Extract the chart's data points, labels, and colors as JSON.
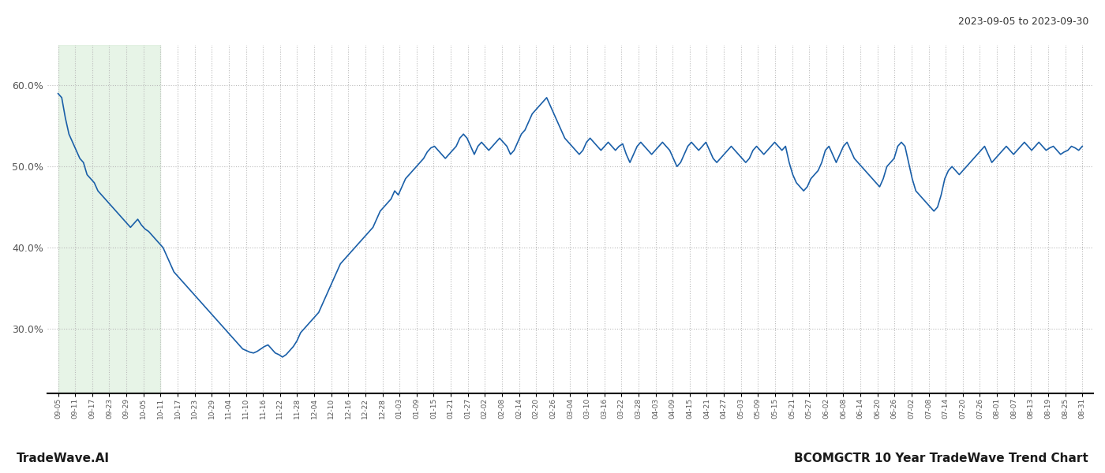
{
  "title_right": "2023-09-05 to 2023-09-30",
  "footer_left": "TradeWave.AI",
  "footer_right": "BCOMGCTR 10 Year TradeWave Trend Chart",
  "line_color": "#1a5fa8",
  "line_width": 1.2,
  "shading_color": "#d8edd8",
  "shading_alpha": 0.6,
  "background_color": "#ffffff",
  "grid_color": "#bbbbbb",
  "ylim": [
    22,
    65
  ],
  "yticks": [
    30.0,
    40.0,
    50.0,
    60.0
  ],
  "x_labels": [
    "09-05",
    "09-11",
    "09-17",
    "09-23",
    "09-29",
    "10-05",
    "10-11",
    "10-17",
    "10-23",
    "10-29",
    "11-04",
    "11-10",
    "11-16",
    "11-22",
    "11-28",
    "12-04",
    "12-10",
    "12-16",
    "12-22",
    "12-28",
    "01-03",
    "01-09",
    "01-15",
    "01-21",
    "01-27",
    "02-02",
    "02-08",
    "02-14",
    "02-20",
    "02-26",
    "03-04",
    "03-10",
    "03-16",
    "03-22",
    "03-28",
    "04-03",
    "04-09",
    "04-15",
    "04-21",
    "04-27",
    "05-03",
    "05-09",
    "05-15",
    "05-21",
    "05-27",
    "06-02",
    "06-08",
    "06-14",
    "06-20",
    "06-26",
    "07-02",
    "07-08",
    "07-14",
    "07-20",
    "07-26",
    "08-01",
    "08-07",
    "08-13",
    "08-19",
    "08-25",
    "08-31"
  ],
  "shade_start_label": "09-05",
  "shade_end_label": "10-17",
  "values": [
    59.0,
    58.5,
    56.0,
    54.0,
    53.0,
    52.0,
    51.0,
    50.5,
    49.0,
    48.5,
    48.0,
    47.0,
    46.5,
    46.0,
    45.5,
    45.0,
    44.5,
    44.0,
    43.5,
    43.0,
    42.5,
    43.0,
    43.5,
    42.8,
    42.3,
    42.0,
    41.5,
    41.0,
    40.5,
    40.0,
    39.0,
    38.0,
    37.0,
    36.5,
    36.0,
    35.5,
    35.0,
    34.5,
    34.0,
    33.5,
    33.0,
    32.5,
    32.0,
    31.5,
    31.0,
    30.5,
    30.0,
    29.5,
    29.0,
    28.5,
    28.0,
    27.5,
    27.3,
    27.1,
    27.0,
    27.2,
    27.5,
    27.8,
    28.0,
    27.5,
    27.0,
    26.8,
    26.5,
    26.8,
    27.3,
    27.8,
    28.5,
    29.5,
    30.0,
    30.5,
    31.0,
    31.5,
    32.0,
    33.0,
    34.0,
    35.0,
    36.0,
    37.0,
    38.0,
    38.5,
    39.0,
    39.5,
    40.0,
    40.5,
    41.0,
    41.5,
    42.0,
    42.5,
    43.5,
    44.5,
    45.0,
    45.5,
    46.0,
    47.0,
    46.5,
    47.5,
    48.5,
    49.0,
    49.5,
    50.0,
    50.5,
    51.0,
    51.8,
    52.3,
    52.5,
    52.0,
    51.5,
    51.0,
    51.5,
    52.0,
    52.5,
    53.5,
    54.0,
    53.5,
    52.5,
    51.5,
    52.5,
    53.0,
    52.5,
    52.0,
    52.5,
    53.0,
    53.5,
    53.0,
    52.5,
    51.5,
    52.0,
    53.0,
    54.0,
    54.5,
    55.5,
    56.5,
    57.0,
    57.5,
    58.0,
    58.5,
    57.5,
    56.5,
    55.5,
    54.5,
    53.5,
    53.0,
    52.5,
    52.0,
    51.5,
    52.0,
    53.0,
    53.5,
    53.0,
    52.5,
    52.0,
    52.5,
    53.0,
    52.5,
    52.0,
    52.5,
    52.8,
    51.5,
    50.5,
    51.5,
    52.5,
    53.0,
    52.5,
    52.0,
    51.5,
    52.0,
    52.5,
    53.0,
    52.5,
    52.0,
    51.0,
    50.0,
    50.5,
    51.5,
    52.5,
    53.0,
    52.5,
    52.0,
    52.5,
    53.0,
    52.0,
    51.0,
    50.5,
    51.0,
    51.5,
    52.0,
    52.5,
    52.0,
    51.5,
    51.0,
    50.5,
    51.0,
    52.0,
    52.5,
    52.0,
    51.5,
    52.0,
    52.5,
    53.0,
    52.5,
    52.0,
    52.5,
    50.5,
    49.0,
    48.0,
    47.5,
    47.0,
    47.5,
    48.5,
    49.0,
    49.5,
    50.5,
    52.0,
    52.5,
    51.5,
    50.5,
    51.5,
    52.5,
    53.0,
    52.0,
    51.0,
    50.5,
    50.0,
    49.5,
    49.0,
    48.5,
    48.0,
    47.5,
    48.5,
    50.0,
    50.5,
    51.0,
    52.5,
    53.0,
    52.5,
    50.5,
    48.5,
    47.0,
    46.5,
    46.0,
    45.5,
    45.0,
    44.5,
    45.0,
    46.5,
    48.5,
    49.5,
    50.0,
    49.5,
    49.0,
    49.5,
    50.0,
    50.5,
    51.0,
    51.5,
    52.0,
    52.5,
    51.5,
    50.5,
    51.0,
    51.5,
    52.0,
    52.5,
    52.0,
    51.5,
    52.0,
    52.5,
    53.0,
    52.5,
    52.0,
    52.5,
    53.0,
    52.5,
    52.0,
    52.3,
    52.5,
    52.0,
    51.5,
    51.8,
    52.0,
    52.5,
    52.3,
    52.0,
    52.5
  ]
}
